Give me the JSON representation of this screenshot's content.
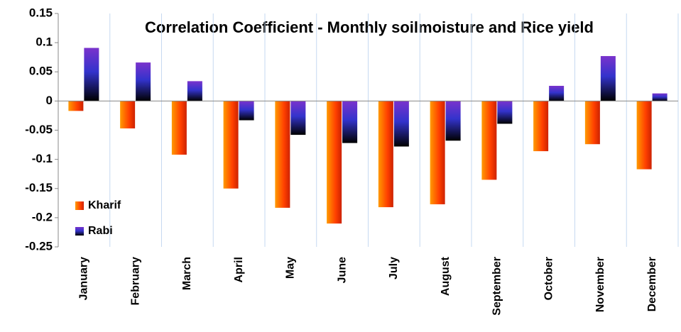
{
  "chart_data": {
    "type": "bar",
    "title": "Correlation Coefficient - Monthly soilmoisture and Rice yield",
    "categories": [
      "January",
      "February",
      "March",
      "April",
      "May",
      "June",
      "July",
      "August",
      "September",
      "October",
      "November",
      "December"
    ],
    "series": [
      {
        "name": "Kharif",
        "color": "#ff4000",
        "values": [
          -0.017,
          -0.047,
          -0.092,
          -0.15,
          -0.183,
          -0.21,
          -0.182,
          -0.177,
          -0.135,
          -0.086,
          -0.074,
          -0.117
        ]
      },
      {
        "name": "Rabi",
        "color": "#3333cc",
        "values": [
          0.091,
          0.066,
          0.034,
          -0.033,
          -0.058,
          -0.072,
          -0.078,
          -0.068,
          -0.039,
          0.026,
          0.077,
          0.013
        ]
      }
    ],
    "ylim": [
      -0.25,
      0.15
    ],
    "yticks": [
      0.15,
      0.1,
      0.05,
      0,
      -0.05,
      -0.1,
      -0.15,
      -0.2,
      -0.25
    ],
    "legend": "left"
  }
}
